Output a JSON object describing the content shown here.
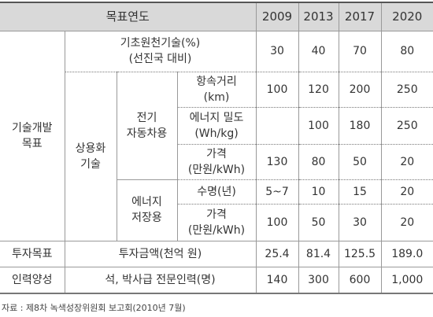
{
  "table": {
    "header": {
      "label": "목표연도",
      "years": [
        "2009",
        "2013",
        "2017",
        "2020"
      ]
    },
    "tech": {
      "label": [
        "기술개발",
        "목표"
      ],
      "basic": {
        "label": [
          "기초원천기술(%)",
          "(선진국 대비)"
        ],
        "values": [
          "30",
          "40",
          "70",
          "80"
        ]
      },
      "commercial": {
        "label": [
          "상용화",
          "기술"
        ],
        "ev": {
          "label": [
            "전기",
            "자동차용"
          ],
          "items": [
            {
              "label": [
                "항속거리",
                "(km)"
              ],
              "values": [
                "100",
                "120",
                "200",
                "250"
              ]
            },
            {
              "label": [
                "에너지 밀도",
                "(Wh/kg)"
              ],
              "values": [
                null,
                "100",
                "180",
                "250"
              ]
            },
            {
              "label": [
                "가격",
                "(만원/kWh)"
              ],
              "values": [
                "130",
                "80",
                "50",
                "20"
              ]
            }
          ]
        },
        "ess": {
          "label": [
            "에너지",
            "저장용"
          ],
          "items": [
            {
              "label": [
                "수명(년)"
              ],
              "values": [
                "5~7",
                "10",
                "15",
                "20"
              ]
            },
            {
              "label": [
                "가격",
                "(만원/kWh)"
              ],
              "values": [
                "100",
                "50",
                "30",
                "20"
              ]
            }
          ]
        }
      }
    },
    "investment": {
      "label": "투자목표",
      "item": "투자금액(천억 원)",
      "values": [
        "25.4",
        "81.4",
        "125.5",
        "189.0"
      ]
    },
    "workforce": {
      "label": "인력양성",
      "item": "석, 박사급 전문인력(명)",
      "values": [
        "140",
        "300",
        "600",
        "1,000"
      ]
    },
    "source": "자료 : 제8차 녹색성장위원회 보고회(2010년 7월)"
  }
}
